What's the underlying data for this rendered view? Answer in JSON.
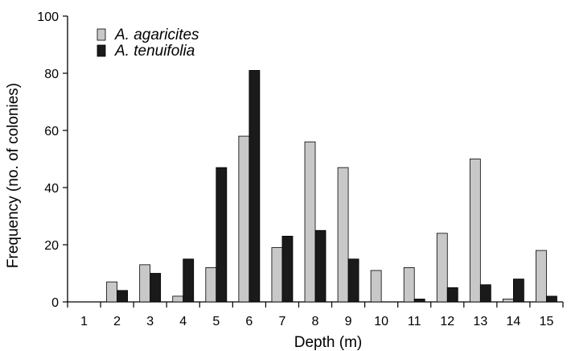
{
  "chart_data": {
    "type": "bar",
    "title": "",
    "xlabel": "Depth (m)",
    "ylabel": "Frequency (no. of colonies)",
    "ylim": [
      0,
      100
    ],
    "yticks": [
      0,
      20,
      40,
      60,
      80,
      100
    ],
    "categories": [
      "1",
      "2",
      "3",
      "4",
      "5",
      "6",
      "7",
      "8",
      "9",
      "10",
      "11",
      "12",
      "13",
      "14",
      "15"
    ],
    "series": [
      {
        "name": "A. agaricites",
        "color": "#c8c8c8",
        "values": [
          0,
          7,
          13,
          2,
          12,
          58,
          19,
          56,
          47,
          11,
          12,
          24,
          50,
          1,
          18
        ]
      },
      {
        "name": "A. tenuifolia",
        "color": "#1a1a1a",
        "values": [
          0,
          4,
          10,
          15,
          47,
          81,
          23,
          25,
          15,
          0,
          1,
          5,
          6,
          8,
          2
        ]
      }
    ],
    "grid": false,
    "legend_position": "top-left"
  }
}
